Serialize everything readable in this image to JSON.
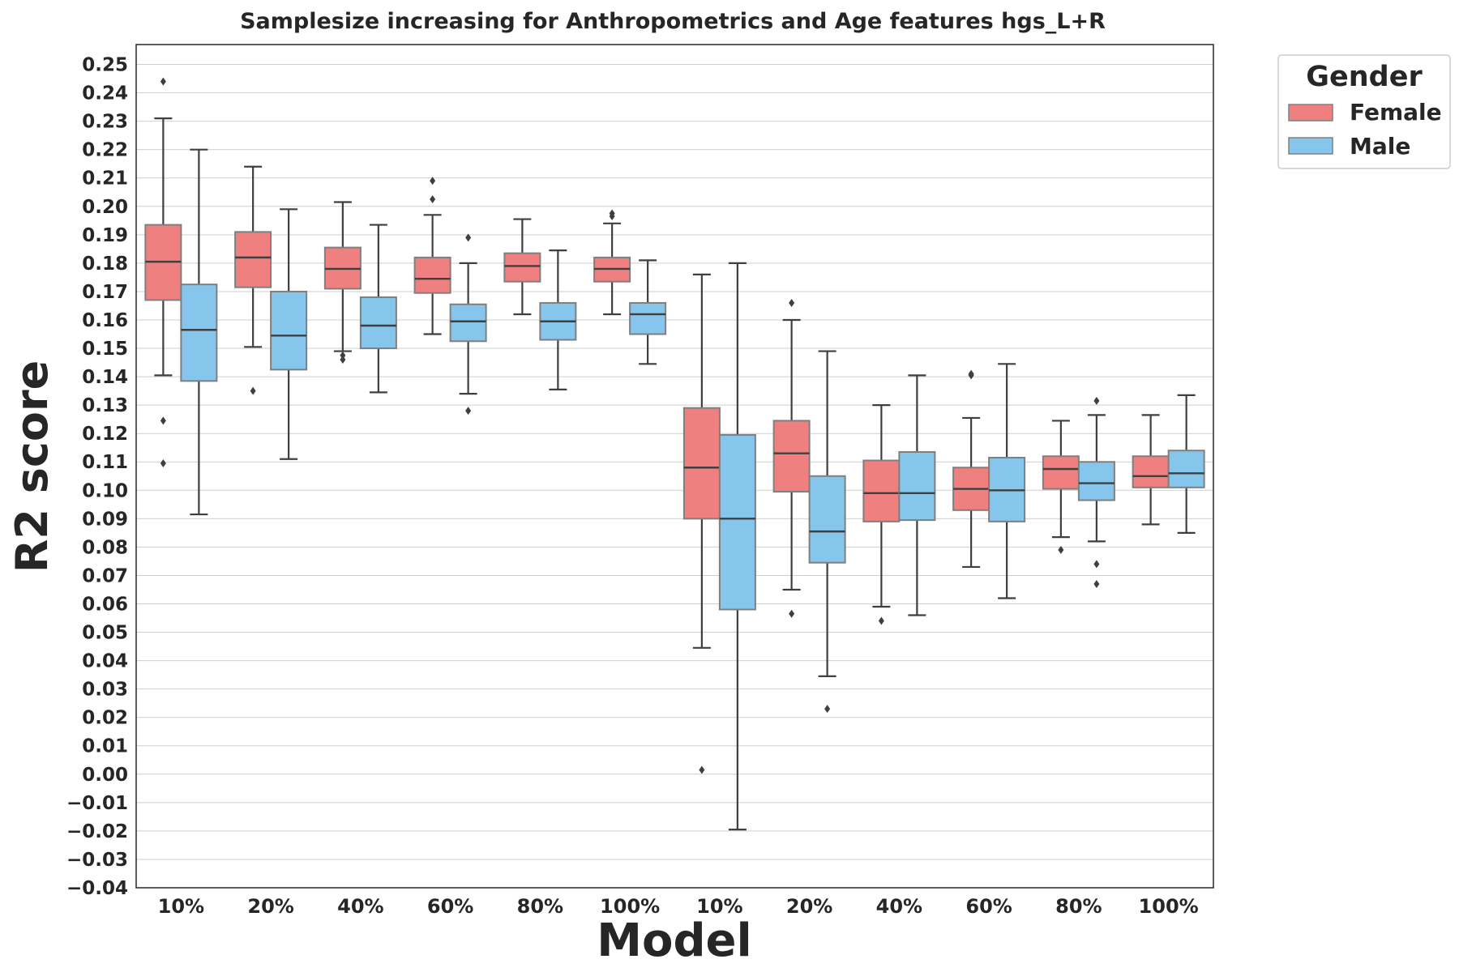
{
  "chart_data": {
    "type": "boxplot",
    "title": "Samplesize increasing for Anthropometrics and Age features hgs_L+R",
    "xlabel": "Model",
    "ylabel": "R2 score",
    "ylim": [
      -0.04,
      0.257
    ],
    "ytick_step": 0.01,
    "grid": "horizontal",
    "legend": {
      "title": "Gender",
      "placement": "upper-right-outside"
    },
    "categories": [
      "10%",
      "20%",
      "40%",
      "60%",
      "80%",
      "100%",
      "10%",
      "20%",
      "40%",
      "60%",
      "80%",
      "100%"
    ],
    "series": [
      {
        "name": "Female",
        "color": "#f08080",
        "boxes": [
          {
            "whislo": 0.1405,
            "q1": 0.167,
            "med": 0.1805,
            "q3": 0.1935,
            "whishi": 0.231,
            "fliers": [
              0.244,
              0.1245,
              0.1095
            ]
          },
          {
            "whislo": 0.1505,
            "q1": 0.1715,
            "med": 0.182,
            "q3": 0.191,
            "whishi": 0.214,
            "fliers": [
              0.135
            ]
          },
          {
            "whislo": 0.149,
            "q1": 0.171,
            "med": 0.178,
            "q3": 0.1855,
            "whishi": 0.2015,
            "fliers": [
              0.1475,
              0.146
            ]
          },
          {
            "whislo": 0.155,
            "q1": 0.1695,
            "med": 0.1745,
            "q3": 0.182,
            "whishi": 0.197,
            "fliers": [
              0.209,
              0.2025
            ]
          },
          {
            "whislo": 0.162,
            "q1": 0.1735,
            "med": 0.179,
            "q3": 0.1835,
            "whishi": 0.1955,
            "fliers": []
          },
          {
            "whislo": 0.162,
            "q1": 0.1735,
            "med": 0.178,
            "q3": 0.182,
            "whishi": 0.194,
            "fliers": [
              0.1975,
              0.1965
            ]
          },
          {
            "whislo": 0.0445,
            "q1": 0.09,
            "med": 0.108,
            "q3": 0.129,
            "whishi": 0.176,
            "fliers": [
              0.0015
            ]
          },
          {
            "whislo": 0.065,
            "q1": 0.0995,
            "med": 0.113,
            "q3": 0.1245,
            "whishi": 0.16,
            "fliers": [
              0.166,
              0.0565
            ]
          },
          {
            "whislo": 0.059,
            "q1": 0.089,
            "med": 0.099,
            "q3": 0.1105,
            "whishi": 0.13,
            "fliers": [
              0.054
            ]
          },
          {
            "whislo": 0.073,
            "q1": 0.093,
            "med": 0.1005,
            "q3": 0.108,
            "whishi": 0.1255,
            "fliers": [
              0.141,
              0.1405
            ]
          },
          {
            "whislo": 0.0835,
            "q1": 0.1005,
            "med": 0.1075,
            "q3": 0.112,
            "whishi": 0.1245,
            "fliers": [
              0.079
            ]
          },
          {
            "whislo": 0.088,
            "q1": 0.101,
            "med": 0.105,
            "q3": 0.112,
            "whishi": 0.1265,
            "fliers": []
          }
        ]
      },
      {
        "name": "Male",
        "color": "#87c6ec",
        "boxes": [
          {
            "whislo": 0.0915,
            "q1": 0.1385,
            "med": 0.1565,
            "q3": 0.1725,
            "whishi": 0.22,
            "fliers": []
          },
          {
            "whislo": 0.111,
            "q1": 0.1425,
            "med": 0.1545,
            "q3": 0.17,
            "whishi": 0.199,
            "fliers": []
          },
          {
            "whislo": 0.1345,
            "q1": 0.15,
            "med": 0.158,
            "q3": 0.168,
            "whishi": 0.1935,
            "fliers": []
          },
          {
            "whislo": 0.134,
            "q1": 0.1525,
            "med": 0.1595,
            "q3": 0.1655,
            "whishi": 0.18,
            "fliers": [
              0.189,
              0.128
            ]
          },
          {
            "whislo": 0.1355,
            "q1": 0.153,
            "med": 0.1595,
            "q3": 0.166,
            "whishi": 0.1845,
            "fliers": []
          },
          {
            "whislo": 0.1445,
            "q1": 0.155,
            "med": 0.162,
            "q3": 0.166,
            "whishi": 0.181,
            "fliers": []
          },
          {
            "whislo": -0.0195,
            "q1": 0.058,
            "med": 0.09,
            "q3": 0.1195,
            "whishi": 0.18,
            "fliers": []
          },
          {
            "whislo": 0.0345,
            "q1": 0.0745,
            "med": 0.0855,
            "q3": 0.105,
            "whishi": 0.149,
            "fliers": [
              0.023
            ]
          },
          {
            "whislo": 0.056,
            "q1": 0.0895,
            "med": 0.099,
            "q3": 0.1135,
            "whishi": 0.1405,
            "fliers": []
          },
          {
            "whislo": 0.062,
            "q1": 0.089,
            "med": 0.1,
            "q3": 0.1115,
            "whishi": 0.1445,
            "fliers": []
          },
          {
            "whislo": 0.082,
            "q1": 0.0965,
            "med": 0.1025,
            "q3": 0.11,
            "whishi": 0.1265,
            "fliers": [
              0.1315,
              0.074,
              0.067
            ]
          },
          {
            "whislo": 0.085,
            "q1": 0.101,
            "med": 0.106,
            "q3": 0.114,
            "whishi": 0.1335,
            "fliers": []
          }
        ]
      }
    ]
  }
}
